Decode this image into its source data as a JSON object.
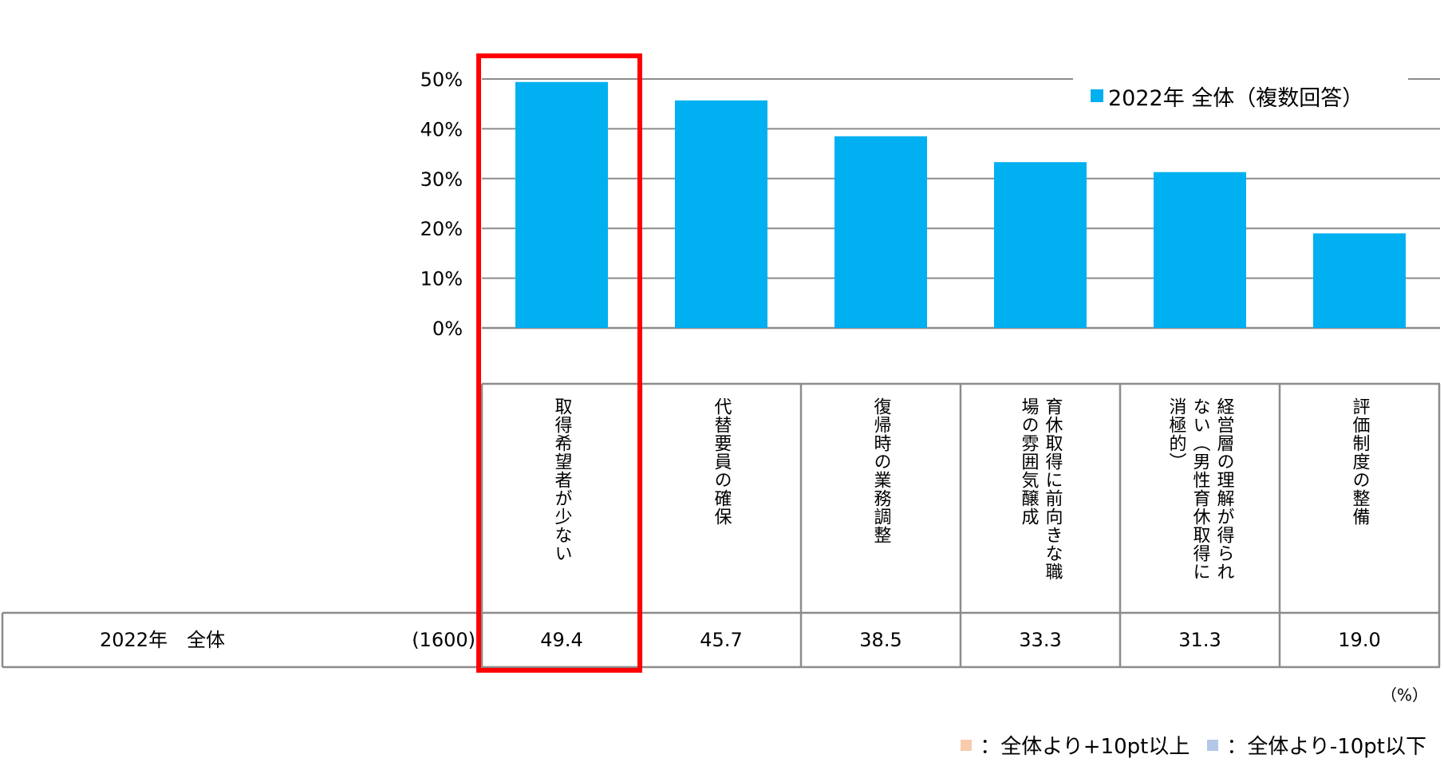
{
  "chart_data": {
    "type": "bar",
    "categories": [
      "取得希望者が少ない",
      "代替要員の確保",
      "復帰時の業務調整",
      "育休取得に前向きな職場の雰囲気醸成",
      "経営層の理解が得られない（男性育休取得に消極的）",
      "評価制度の整備"
    ],
    "label_columns": [
      [
        "取得希望者が少ない"
      ],
      [
        "代替要員の確保"
      ],
      [
        "復帰時の業務調整"
      ],
      [
        "育休取得に前向きな職",
        "場の雰囲気醸成"
      ],
      [
        "経営層の理解が得られ",
        "ない（男性育休取得に",
        "消極的）"
      ],
      [
        "評価制度の整備"
      ]
    ],
    "series": [
      {
        "name": "2022年 全体（複数回答）",
        "values": [
          49.4,
          45.7,
          38.5,
          33.3,
          31.3,
          19.0
        ]
      }
    ],
    "value_labels": [
      "49.4",
      "45.7",
      "38.5",
      "33.3",
      "31.3",
      "19.0"
    ],
    "ylim": [
      0,
      50
    ],
    "yticks": [
      0,
      10,
      20,
      30,
      40,
      50
    ],
    "ytick_labels": [
      "0%",
      "10%",
      "20%",
      "30%",
      "40%",
      "50%"
    ],
    "grid": true,
    "legend_position": "top-right",
    "highlight_index": 0,
    "highlight_color": "#ff0000",
    "bar_color": "#00b0f0"
  },
  "table": {
    "row_label": "2022年　全体",
    "row_n": "(1600)"
  },
  "unit_note": "（%）",
  "key": {
    "colon": "：",
    "plus_label": "全体より+10pt以上",
    "plus_color": "#f8cbad",
    "minus_label": "全体より-10pt以下",
    "minus_color": "#b4c7e7"
  }
}
